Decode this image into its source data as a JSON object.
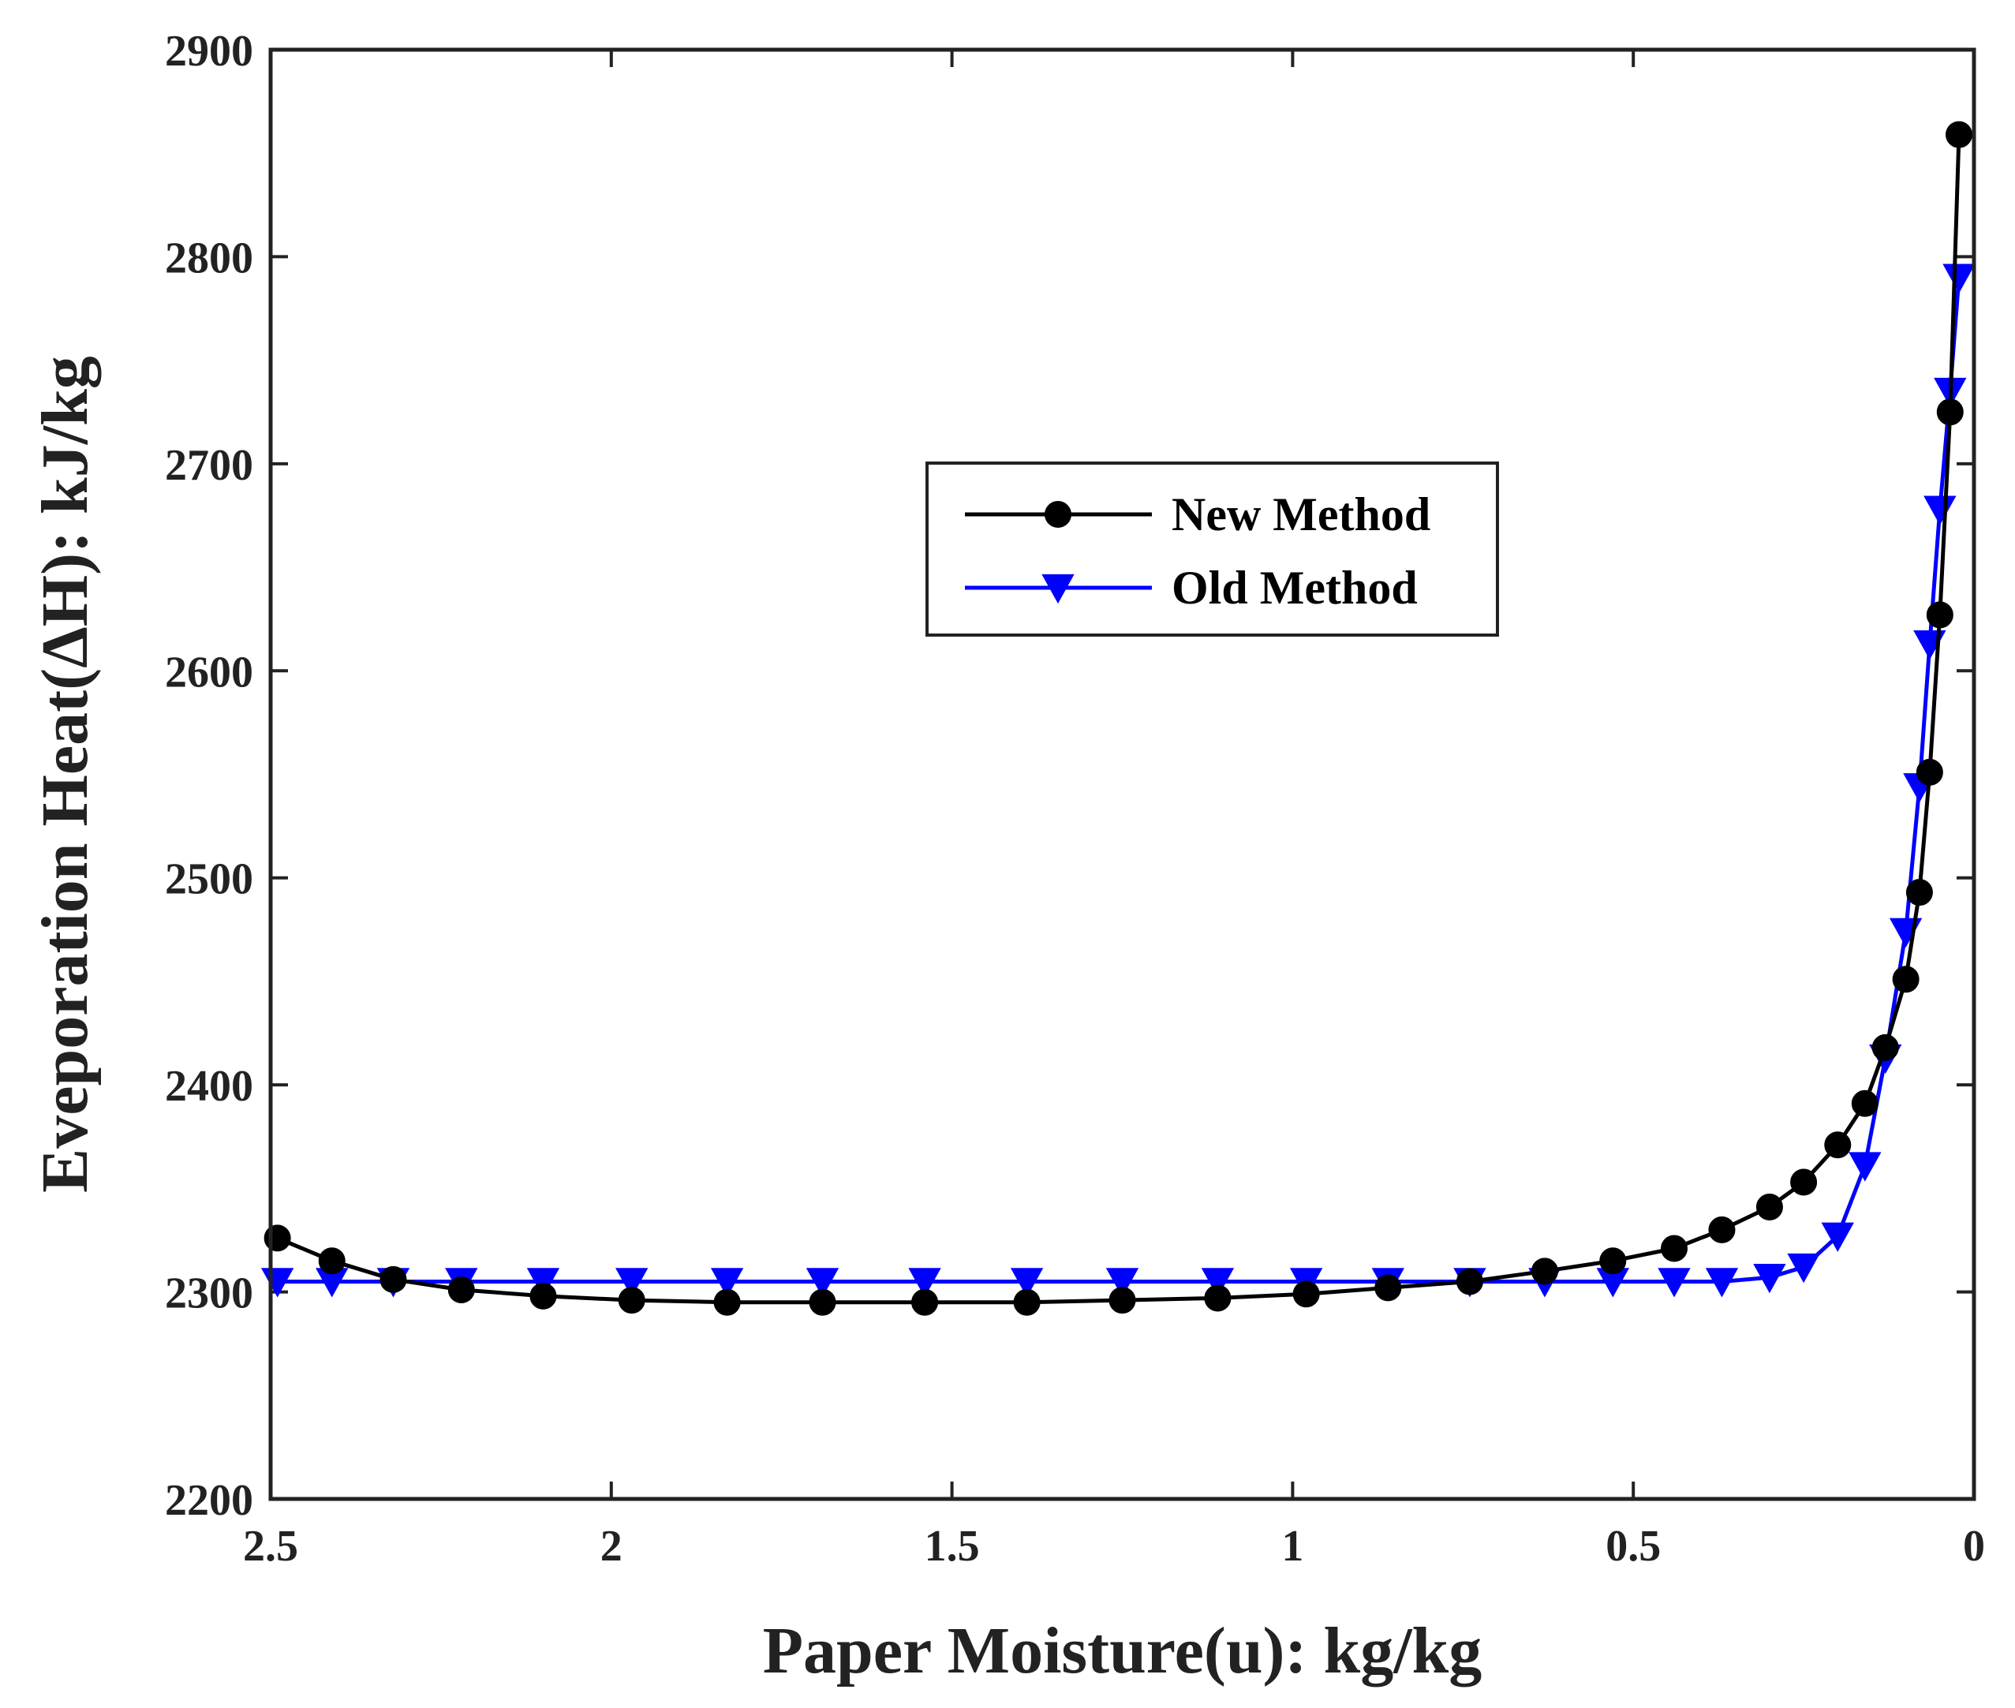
{
  "chart_data": {
    "type": "line",
    "title": "",
    "xlabel": "Paper Moisture(u): kg/kg",
    "ylabel": "Eveporation Heat(ΔH): kJ/kg",
    "xlim": [
      2.5,
      0
    ],
    "ylim": [
      2200,
      2900
    ],
    "x_reversed": true,
    "xticks": [
      2.5,
      2,
      1.5,
      1,
      0.5,
      0
    ],
    "xtick_labels": [
      "2.5",
      "2",
      "1.5",
      "1",
      "0.5",
      "0"
    ],
    "yticks": [
      2200,
      2300,
      2400,
      2500,
      2600,
      2700,
      2800,
      2900
    ],
    "ytick_labels": [
      "2200",
      "2300",
      "2400",
      "2500",
      "2600",
      "2700",
      "2800",
      "2900"
    ],
    "grid": false,
    "legend_position": "upper-center-right",
    "series": [
      {
        "name": "New Method",
        "color": "#000000",
        "marker": "circle",
        "points": [
          [
            2.49,
            2326
          ],
          [
            2.41,
            2315
          ],
          [
            2.32,
            2306
          ],
          [
            2.22,
            2301
          ],
          [
            2.1,
            2298
          ],
          [
            1.97,
            2296
          ],
          [
            1.83,
            2295
          ],
          [
            1.69,
            2295
          ],
          [
            1.54,
            2295
          ],
          [
            1.39,
            2295
          ],
          [
            1.25,
            2296
          ],
          [
            1.11,
            2297
          ],
          [
            0.98,
            2299
          ],
          [
            0.86,
            2302
          ],
          [
            0.74,
            2305
          ],
          [
            0.63,
            2310
          ],
          [
            0.53,
            2315
          ],
          [
            0.44,
            2321
          ],
          [
            0.37,
            2330
          ],
          [
            0.3,
            2341
          ],
          [
            0.25,
            2353
          ],
          [
            0.2,
            2371
          ],
          [
            0.16,
            2391
          ],
          [
            0.13,
            2418
          ],
          [
            0.1,
            2451
          ],
          [
            0.08,
            2493
          ],
          [
            0.065,
            2551
          ],
          [
            0.05,
            2627
          ],
          [
            0.035,
            2725
          ],
          [
            0.022,
            2859
          ]
        ]
      },
      {
        "name": "Old Method",
        "color": "#0000ff",
        "marker": "triangle-down",
        "points": [
          [
            2.49,
            2305
          ],
          [
            2.41,
            2305
          ],
          [
            2.32,
            2305
          ],
          [
            2.22,
            2305
          ],
          [
            2.1,
            2305
          ],
          [
            1.97,
            2305
          ],
          [
            1.83,
            2305
          ],
          [
            1.69,
            2305
          ],
          [
            1.54,
            2305
          ],
          [
            1.39,
            2305
          ],
          [
            1.25,
            2305
          ],
          [
            1.11,
            2305
          ],
          [
            0.98,
            2305
          ],
          [
            0.86,
            2305
          ],
          [
            0.74,
            2305
          ],
          [
            0.63,
            2305
          ],
          [
            0.53,
            2305
          ],
          [
            0.44,
            2305
          ],
          [
            0.37,
            2305
          ],
          [
            0.3,
            2307
          ],
          [
            0.25,
            2312
          ],
          [
            0.2,
            2327
          ],
          [
            0.16,
            2361
          ],
          [
            0.13,
            2413
          ],
          [
            0.1,
            2474
          ],
          [
            0.08,
            2544
          ],
          [
            0.065,
            2613
          ],
          [
            0.05,
            2678
          ],
          [
            0.035,
            2735
          ],
          [
            0.022,
            2790
          ]
        ]
      }
    ]
  }
}
